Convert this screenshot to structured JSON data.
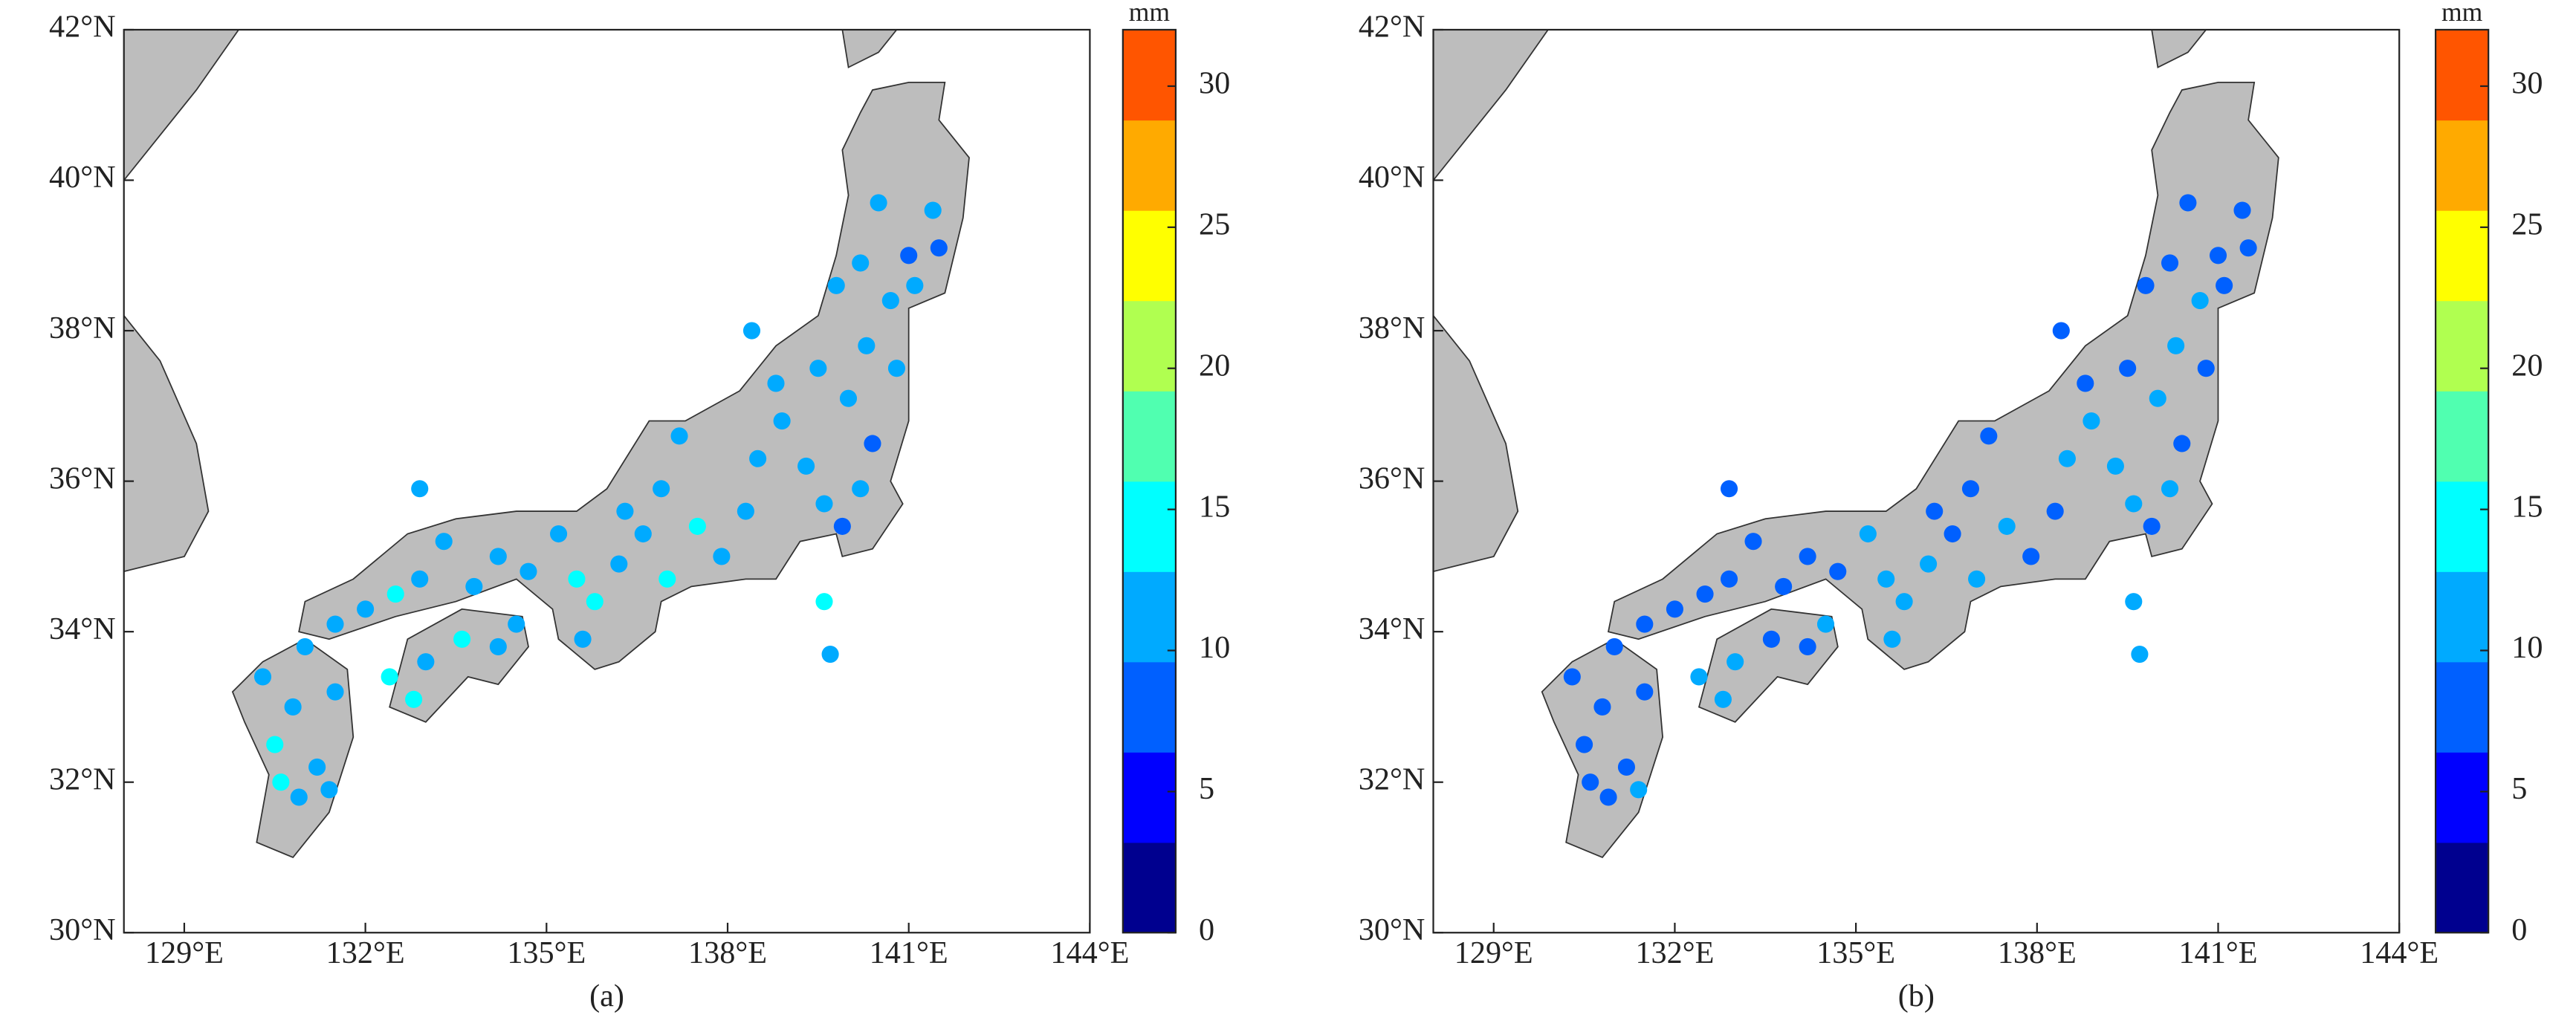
{
  "chart_data": [
    {
      "type": "scatter",
      "label": "(a)",
      "xlim": [
        128,
        144
      ],
      "ylim": [
        30,
        42
      ],
      "xticks": [
        {
          "value": 129,
          "label": "129°E"
        },
        {
          "value": 132,
          "label": "132°E"
        },
        {
          "value": 135,
          "label": "135°E"
        },
        {
          "value": 138,
          "label": "138°E"
        },
        {
          "value": 141,
          "label": "141°E"
        },
        {
          "value": 144,
          "label": "144°E"
        }
      ],
      "yticks": [
        {
          "value": 30,
          "label": "30°N"
        },
        {
          "value": 32,
          "label": "32°N"
        },
        {
          "value": 34,
          "label": "34°N"
        },
        {
          "value": 36,
          "label": "36°N"
        },
        {
          "value": 38,
          "label": "38°N"
        },
        {
          "value": 40,
          "label": "40°N"
        },
        {
          "value": 42,
          "label": "42°N"
        }
      ],
      "x": [
        130.5,
        130.8,
        131.2,
        130.3,
        131.5,
        130.9,
        131.4,
        130.6,
        131.0,
        131.5,
        132.0,
        132.5,
        132.9,
        133.3,
        133.8,
        134.2,
        134.7,
        135.2,
        135.5,
        135.8,
        135.6,
        136.2,
        136.6,
        136.9,
        137.2,
        137.5,
        137.9,
        138.3,
        138.5,
        138.9,
        139.3,
        139.6,
        139.9,
        140.2,
        140.4,
        140.0,
        139.5,
        140.3,
        140.8,
        140.7,
        140.2,
        141.0,
        141.4,
        140.5,
        141.1,
        139.8,
        138.8,
        138.4,
        132.4,
        133.0,
        133.6,
        134.2,
        134.5,
        132.8,
        139.6,
        139.7,
        132.9,
        137.0,
        136.3,
        141.5
      ],
      "y": [
        32.5,
        33.0,
        32.2,
        33.4,
        33.2,
        31.8,
        31.9,
        32.0,
        33.8,
        34.1,
        34.3,
        34.5,
        34.7,
        35.2,
        34.6,
        35.0,
        34.8,
        35.3,
        34.7,
        34.4,
        33.9,
        34.9,
        35.3,
        35.9,
        36.6,
        35.4,
        35.0,
        35.6,
        36.3,
        36.8,
        36.2,
        35.7,
        35.4,
        35.9,
        36.5,
        37.1,
        37.5,
        37.8,
        37.5,
        38.4,
        38.9,
        39.0,
        39.6,
        39.7,
        38.6,
        38.6,
        37.3,
        38.0,
        33.4,
        33.6,
        33.9,
        33.8,
        34.1,
        33.1,
        34.4,
        33.7,
        35.9,
        34.7,
        35.6,
        39.1
      ],
      "values": [
        14,
        12,
        11,
        12,
        11,
        12,
        11,
        14,
        11,
        12,
        11,
        13,
        12,
        11,
        12,
        11,
        12,
        11,
        13,
        14,
        12,
        12,
        11,
        11,
        12,
        13,
        11,
        12,
        11,
        12,
        11,
        10,
        9,
        11,
        9,
        11,
        12,
        11,
        10,
        11,
        12,
        9,
        11,
        12,
        11,
        11,
        12,
        11,
        14,
        12,
        13,
        12,
        12,
        14,
        13,
        11,
        11,
        15,
        12,
        9
      ],
      "colorbar": {
        "label": "mm",
        "lim": [
          0,
          32
        ],
        "ticks": [
          0,
          5,
          10,
          15,
          20,
          25,
          30
        ],
        "colors": [
          "#00008f",
          "#0000ff",
          "#0060ff",
          "#00aaff",
          "#00ffff",
          "#50ffb0",
          "#b0ff50",
          "#ffff00",
          "#ffaa00",
          "#ff5500"
        ]
      }
    },
    {
      "type": "scatter",
      "label": "(b)",
      "xlim": [
        128,
        144
      ],
      "ylim": [
        30,
        42
      ],
      "xticks": [
        {
          "value": 129,
          "label": "129°E"
        },
        {
          "value": 132,
          "label": "132°E"
        },
        {
          "value": 135,
          "label": "135°E"
        },
        {
          "value": 138,
          "label": "138°E"
        },
        {
          "value": 141,
          "label": "141°E"
        },
        {
          "value": 144,
          "label": "144°E"
        }
      ],
      "yticks": [
        {
          "value": 30,
          "label": "30°N"
        },
        {
          "value": 32,
          "label": "32°N"
        },
        {
          "value": 34,
          "label": "34°N"
        },
        {
          "value": 36,
          "label": "36°N"
        },
        {
          "value": 38,
          "label": "38°N"
        },
        {
          "value": 40,
          "label": "40°N"
        },
        {
          "value": 42,
          "label": "42°N"
        }
      ],
      "x": [
        130.5,
        130.8,
        131.2,
        130.3,
        131.5,
        130.9,
        131.4,
        130.6,
        131.0,
        131.5,
        132.0,
        132.5,
        132.9,
        133.3,
        133.8,
        134.2,
        134.7,
        135.2,
        135.5,
        135.8,
        135.6,
        136.2,
        136.6,
        136.9,
        137.2,
        137.5,
        137.9,
        138.3,
        138.5,
        138.9,
        139.3,
        139.6,
        139.9,
        140.2,
        140.4,
        140.0,
        139.5,
        140.3,
        140.8,
        140.7,
        140.2,
        141.0,
        141.4,
        140.5,
        141.1,
        139.8,
        138.8,
        138.4,
        132.4,
        133.0,
        133.6,
        134.2,
        134.5,
        132.8,
        139.6,
        139.7,
        132.9,
        137.0,
        136.3,
        141.5
      ],
      "y": [
        32.5,
        33.0,
        32.2,
        33.4,
        33.2,
        31.8,
        31.9,
        32.0,
        33.8,
        34.1,
        34.3,
        34.5,
        34.7,
        35.2,
        34.6,
        35.0,
        34.8,
        35.3,
        34.7,
        34.4,
        33.9,
        34.9,
        35.3,
        35.9,
        36.6,
        35.4,
        35.0,
        35.6,
        36.3,
        36.8,
        36.2,
        35.7,
        35.4,
        35.9,
        36.5,
        37.1,
        37.5,
        37.8,
        37.5,
        38.4,
        38.9,
        39.0,
        39.6,
        39.7,
        38.6,
        38.6,
        37.3,
        38.0,
        33.4,
        33.6,
        33.9,
        33.8,
        34.1,
        33.1,
        34.4,
        33.7,
        35.9,
        34.7,
        35.6,
        39.1
      ],
      "values": [
        9,
        8,
        9,
        8,
        8,
        9,
        12,
        8,
        8,
        8,
        9,
        8,
        8,
        8,
        9,
        8,
        8,
        11,
        11,
        11,
        12,
        11,
        8,
        9,
        8,
        11,
        9,
        9,
        11,
        10,
        12,
        11,
        8,
        11,
        8,
        11,
        9,
        11,
        8,
        11,
        8,
        8,
        9,
        8,
        8,
        8,
        8,
        8,
        11,
        11,
        9,
        8,
        11,
        12,
        12,
        11,
        8,
        12,
        9,
        8
      ],
      "colorbar": {
        "label": "mm",
        "lim": [
          0,
          32
        ],
        "ticks": [
          0,
          5,
          10,
          15,
          20,
          25,
          30
        ],
        "colors": [
          "#00008f",
          "#0000ff",
          "#0060ff",
          "#00aaff",
          "#00ffff",
          "#50ffb0",
          "#b0ff50",
          "#ffff00",
          "#ffaa00",
          "#ff5500"
        ]
      }
    }
  ]
}
